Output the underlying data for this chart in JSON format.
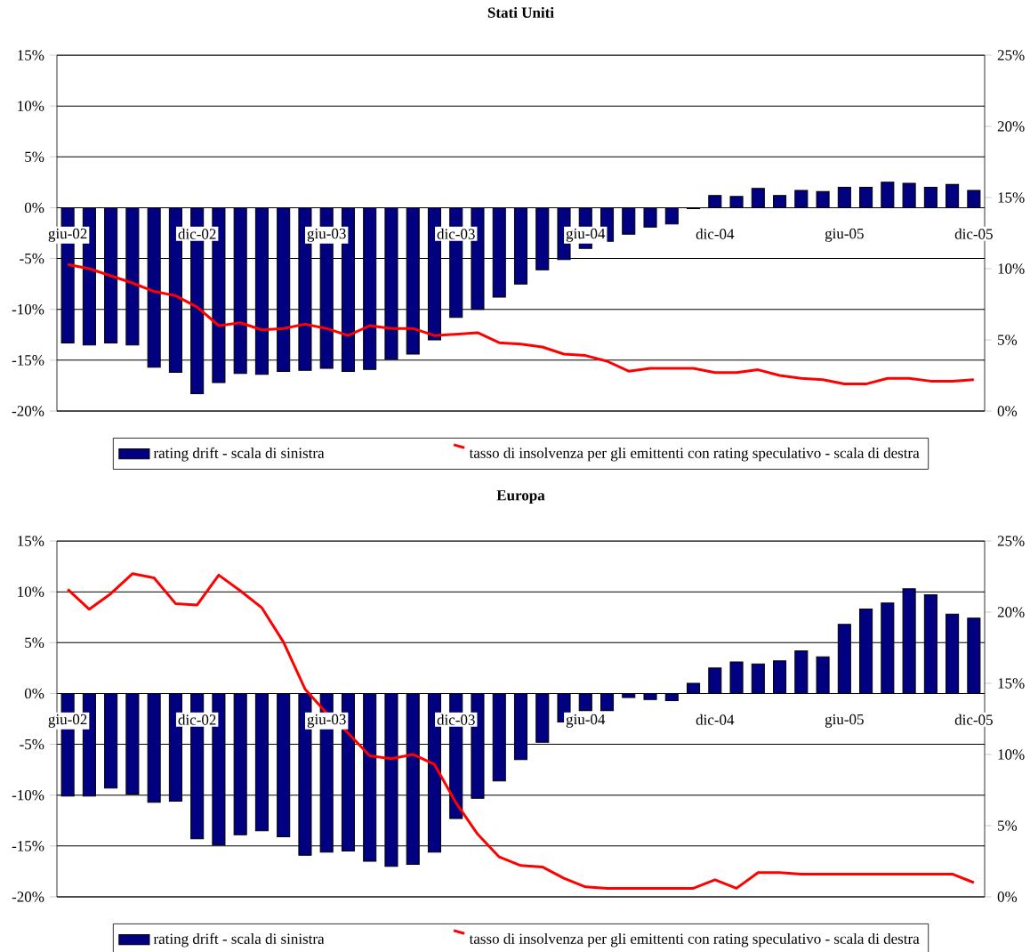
{
  "chart_data": [
    {
      "type": "bar",
      "title": "Stati Uniti",
      "categories": [
        "giu-02",
        null,
        null,
        null,
        null,
        null,
        "dic-02",
        null,
        null,
        null,
        null,
        null,
        "giu-03",
        null,
        null,
        null,
        null,
        null,
        "dic-03",
        null,
        null,
        null,
        null,
        null,
        "giu-04",
        null,
        null,
        null,
        null,
        null,
        "dic-04",
        null,
        null,
        null,
        null,
        null,
        "giu-05",
        null,
        null,
        null,
        null,
        null,
        "dic-05"
      ],
      "series": [
        {
          "name": "rating drift - scala di sinistra",
          "color": "#000080",
          "values": [
            -13.3,
            -13.5,
            -13.3,
            -13.5,
            -15.7,
            -16.2,
            -18.3,
            -17.2,
            -16.3,
            -16.4,
            -16.1,
            -16.0,
            -15.8,
            -16.1,
            -15.9,
            -14.9,
            -14.4,
            -13.0,
            -10.8,
            -10.0,
            -8.8,
            -7.5,
            -6.1,
            -5.1,
            -4.0,
            -3.3,
            -2.6,
            -1.9,
            -1.6,
            -0.1,
            1.2,
            1.1,
            1.9,
            1.2,
            1.7,
            1.6,
            2.0,
            2.0,
            2.5,
            2.4,
            2.0,
            2.3,
            1.7
          ]
        },
        {
          "name": "tasso di insolvenza per gli emittenti con rating speculativo - scala di destra",
          "type": "line",
          "axis": "y2",
          "color": "#ff0000",
          "values": [
            10.3,
            10.0,
            9.5,
            9.0,
            8.4,
            8.1,
            7.3,
            6.0,
            6.2,
            5.7,
            5.8,
            6.1,
            5.8,
            5.3,
            6.0,
            5.8,
            5.8,
            5.3,
            5.4,
            5.5,
            4.8,
            4.7,
            4.5,
            4.0,
            3.9,
            3.5,
            2.8,
            3.0,
            3.0,
            3.0,
            2.7,
            2.7,
            2.9,
            2.5,
            2.3,
            2.2,
            1.9,
            1.9,
            2.3,
            2.3,
            2.1,
            2.1,
            2.2
          ]
        }
      ],
      "ylim": [
        -20,
        15
      ],
      "yticks": [
        {
          "value": -20,
          "label": "-20%"
        },
        {
          "value": -15,
          "label": "-15%"
        },
        {
          "value": -10,
          "label": "-10%"
        },
        {
          "value": -5,
          "label": "-5%"
        },
        {
          "value": 0,
          "label": "0%"
        },
        {
          "value": 5,
          "label": "5%"
        },
        {
          "value": 10,
          "label": "10%"
        },
        {
          "value": 15,
          "label": "15%"
        }
      ],
      "y2lim": [
        0,
        25
      ],
      "y2ticks": [
        {
          "value": 0,
          "label": "0%"
        },
        {
          "value": 5,
          "label": "5%"
        },
        {
          "value": 10,
          "label": "10%"
        },
        {
          "value": 15,
          "label": "15%"
        },
        {
          "value": 20,
          "label": "20%"
        },
        {
          "value": 25,
          "label": "25%"
        }
      ],
      "grid": "y",
      "legend": "bottom"
    },
    {
      "type": "bar",
      "title": "Europa",
      "categories": [
        "giu-02",
        null,
        null,
        null,
        null,
        null,
        "dic-02",
        null,
        null,
        null,
        null,
        null,
        "giu-03",
        null,
        null,
        null,
        null,
        null,
        "dic-03",
        null,
        null,
        null,
        null,
        null,
        "giu-04",
        null,
        null,
        null,
        null,
        null,
        "dic-04",
        null,
        null,
        null,
        null,
        null,
        "giu-05",
        null,
        null,
        null,
        null,
        null,
        "dic-05"
      ],
      "series": [
        {
          "name": "rating drift - scala di sinistra",
          "color": "#000080",
          "values": [
            -10.1,
            -10.1,
            -9.3,
            -9.9,
            -10.7,
            -10.6,
            -14.3,
            -14.9,
            -13.9,
            -13.5,
            -14.1,
            -15.9,
            -15.6,
            -15.5,
            -16.5,
            -17.0,
            -16.8,
            -15.6,
            -12.3,
            -10.3,
            -8.6,
            -6.5,
            -4.8,
            -2.8,
            -1.7,
            -1.7,
            -0.4,
            -0.6,
            -0.7,
            1.0,
            2.5,
            3.1,
            2.9,
            3.2,
            4.2,
            3.6,
            6.8,
            8.3,
            8.9,
            10.3,
            9.7,
            7.8,
            7.4
          ]
        },
        {
          "name": "tasso di insolvenza per gli emittenti con rating speculativo - scala di destra",
          "type": "line",
          "axis": "y2",
          "color": "#ff0000",
          "values": [
            21.6,
            20.2,
            21.3,
            22.7,
            22.4,
            20.6,
            20.5,
            22.6,
            21.5,
            20.3,
            17.9,
            14.6,
            12.9,
            11.5,
            9.9,
            9.7,
            10.0,
            9.3,
            6.6,
            4.4,
            2.8,
            2.2,
            2.1,
            1.3,
            0.7,
            0.6,
            0.6,
            0.6,
            0.6,
            0.6,
            1.2,
            0.6,
            1.7,
            1.7,
            1.6,
            1.6,
            1.6,
            1.6,
            1.6,
            1.6,
            1.6,
            1.6,
            1.0
          ]
        }
      ],
      "ylim": [
        -20,
        15
      ],
      "yticks": [
        {
          "value": -20,
          "label": "-20%"
        },
        {
          "value": -15,
          "label": "-15%"
        },
        {
          "value": -10,
          "label": "-10%"
        },
        {
          "value": -5,
          "label": "-5%"
        },
        {
          "value": 0,
          "label": "0%"
        },
        {
          "value": 5,
          "label": "5%"
        },
        {
          "value": 10,
          "label": "10%"
        },
        {
          "value": 15,
          "label": "15%"
        }
      ],
      "y2lim": [
        0,
        25
      ],
      "y2ticks": [
        {
          "value": 0,
          "label": "0%"
        },
        {
          "value": 5,
          "label": "5%"
        },
        {
          "value": 10,
          "label": "10%"
        },
        {
          "value": 15,
          "label": "15%"
        },
        {
          "value": 20,
          "label": "20%"
        },
        {
          "value": 25,
          "label": "25%"
        }
      ],
      "grid": "y",
      "legend": "bottom"
    }
  ]
}
